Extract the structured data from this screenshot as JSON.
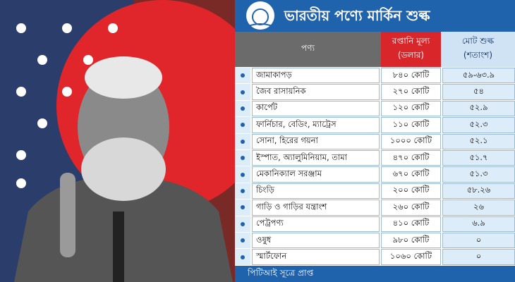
{
  "title": "ভারতীয় পণ্যে মার্কিন শুল্ক",
  "table": {
    "headers": [
      [
        "পণ্য"
      ],
      [
        "রপ্তানি মূল্য",
        "(ডলার)"
      ],
      [
        "মোট শুল্ক",
        "(শতাংশ)"
      ]
    ],
    "rows": [
      [
        "জামাকাপড়",
        "৮৪০ কোটি",
        "৫৯-৬৩.৯"
      ],
      [
        "জৈব রাসায়নিক",
        "২৭০ কোটি",
        "৫৪"
      ],
      [
        "কার্পেট",
        "১২০ কোটি",
        "৫২.৯"
      ],
      [
        "ফার্নিচার, বেডিং, ম্যাট্রেস",
        "১১০ কোটি",
        "৫২.৩"
      ],
      [
        "সোনা, হিরের গয়না",
        "১০০০ কোটি",
        "৫২.১"
      ],
      [
        "ইস্পাত, অ্যালুমিনিয়াম, তামা",
        "৪৭০ কোটি",
        "৫১.৭"
      ],
      [
        "মেকানিক্যাল সরঞ্জাম",
        "৬৭০ কোটি",
        "৫১.৩"
      ],
      [
        "চিংড়ি",
        "২০০ কোটি",
        "৫৮.২৬"
      ],
      [
        "গাড়ি ও গাড়ির যন্ত্রাংশ",
        "২৬০ কোটি",
        "২৬"
      ],
      [
        "পেট্রপণ্য",
        "৪১০ কোটি",
        "৬.৯"
      ],
      [
        "ওষুধ",
        "৯৮০ কোটি",
        "০"
      ],
      [
        "স্মার্টফোন",
        "১০৬০ কোটি",
        "০"
      ]
    ]
  },
  "footer": "পিটিআই সূত্রে প্রাপ্ত"
}
